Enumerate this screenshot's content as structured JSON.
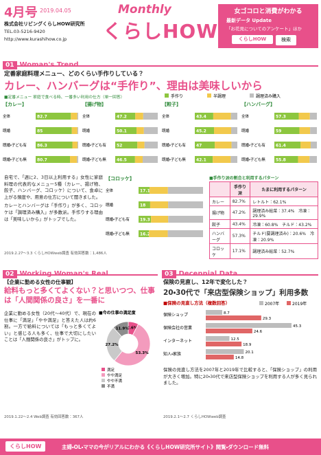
{
  "header": {
    "issue": "4月号",
    "date": "2019.04.05",
    "company": "株式会社リビングくらしHOW研究所",
    "tel": "TEL.03-5216-9420",
    "url": "http://www.kurashihow.co.jp",
    "logo_small": "Monthly",
    "logo": "くらしHOW",
    "tagline": "女ゴコロと消費がわかる",
    "update_label": "最新データ Update",
    "update_text": "「お花見についてのアンケート」ほか",
    "search_name": "くらしHOW",
    "search_button": "検索"
  },
  "section1": {
    "number": "01",
    "label": "Woman's Trend",
    "subtitle": "定番家庭料理メニュー、どのくらい手作りしている？",
    "headline": "カレー、ハンバーグは“手作り”、理由は美味しいから",
    "chart_note": "■定番メニュー 家庭で食べる時、一番多い利用の仕方（単一回答）",
    "legend": [
      {
        "name": "手作り",
        "color": "#8dc63f"
      },
      {
        "name": "半調理",
        "color": "#f2c94c"
      },
      {
        "name": "調理済み購入",
        "color": "#bfbfbf"
      }
    ],
    "xlim": [
      0,
      100
    ],
    "charts": [
      {
        "type": "bar",
        "title": "【カレー】",
        "categories": [
          "全体",
          "既婚",
          "既婚・子ども有",
          "既婚・子ども無"
        ],
        "series": [
          [
            82.7,
            85.0,
            86.3,
            80.7
          ],
          [
            15.2,
            13.1,
            12.0,
            16.5
          ],
          [
            2.1,
            1.9,
            1.7,
            2.8
          ]
        ]
      },
      {
        "type": "bar",
        "title": "【揚げ物】",
        "categories": [
          "全体",
          "既婚",
          "既婚・子ども有",
          "既婚・子ども無"
        ],
        "series": [
          [
            47.2,
            50.1,
            52.0,
            46.5
          ],
          [
            18.6,
            17.3,
            16.8,
            18.0
          ],
          [
            34.2,
            32.6,
            31.2,
            35.5
          ]
        ]
      },
      {
        "type": "bar",
        "title": "【餃子】",
        "categories": [
          "全体",
          "既婚",
          "既婚・子ども有",
          "既婚・子ども無"
        ],
        "series": [
          [
            43.4,
            45.2,
            47.0,
            42.1
          ],
          [
            41.6,
            40.3,
            39.5,
            42.4
          ],
          [
            15.0,
            14.5,
            13.5,
            15.5
          ]
        ]
      },
      {
        "type": "bar",
        "title": "【ハンバーグ】",
        "categories": [
          "全体",
          "既婚",
          "既婚・子ども有",
          "既婚・子ども無"
        ],
        "series": [
          [
            57.3,
            59.0,
            61.4,
            55.8
          ],
          [
            26.2,
            25.1,
            24.0,
            27.0
          ],
          [
            16.5,
            15.9,
            14.6,
            17.2
          ]
        ]
      },
      {
        "type": "bar",
        "title": "【コロッケ】",
        "categories": [
          "全体",
          "既婚",
          "既婚・子ども有",
          "既婚・子ども無"
        ],
        "series": [
          [
            17.1,
            18.0,
            19.3,
            16.2
          ],
          [
            28.4,
            27.9,
            26.7,
            29.1
          ],
          [
            54.5,
            54.1,
            54.0,
            54.7
          ]
        ]
      }
    ],
    "table": {
      "title": "■手作り派の割合と利用するパターン",
      "headers": [
        "",
        "手作り派",
        "たまに利用するパターン"
      ],
      "rows": [
        [
          "カレー",
          "82.7%",
          "レトルト：62.1%"
        ],
        [
          "揚げ物",
          "47.2%",
          "調理済み総菜：37.4%　冷凍：29.9%"
        ],
        [
          "餃子",
          "43.4%",
          "冷凍：60.8%　チルド：43.2%"
        ],
        [
          "ハンバーグ",
          "57.3%",
          "チルド(要調理済み)：20.6%　冷凍：20.9%"
        ],
        [
          "コロッケ",
          "17.1%",
          "調理済み総菜：52.7%"
        ]
      ]
    },
    "body": [
      "自宅で、「週に2、3日以上利用する」女性に家庭料理の代表的なメニュー5種（カレー、揚げ物、餃子、ハンバーグ、コロッケ）について、食卓に上がる頻度や、用意の仕方について聞きました。",
      "カレーとハンバーグは「手作り」が多く、コロッケは「調理済み購入」が多数派。手作りする理由は「美味しいから」がトップでした。"
    ],
    "footnote": "2019.2.27〜3.3 くらしHOWweb調査 有効回答数：1,486人"
  },
  "section2": {
    "number": "02",
    "label": "Working Woman's Real",
    "subtitle": "【企業に勤める女性の仕事観】",
    "headline": "給料もっと多くてよくない？と思いつつ、仕事は「人間関係の良さ」を一番に",
    "body": "企業に勤める女性（20代〜40代）で、現在の仕事に「満足」「やや満足」と答えた人は約6割。一方で給料については「もっと多くてよい」と感じる人も多く、仕事で大切にしたいことは「人間関係の良さ」がトップに。",
    "footnote": "2019.1.22〜2.4 Web調査 有効回答数：367人",
    "chart": {
      "type": "pie",
      "title": "■今の仕事の満足度",
      "categories": [
        "満足",
        "やや満足",
        "やや不満",
        "不満"
      ],
      "values": [
        7.6,
        53.3,
        27.2,
        11.9
      ],
      "value_labels": [
        "7.6%",
        "53.3%",
        "27.2%",
        "11.9%"
      ],
      "colors": [
        "#e8508a",
        "#f39bbd",
        "#c9c9c9",
        "#8c8c8c"
      ]
    }
  },
  "section3": {
    "number": "03",
    "label": "Decennial Data",
    "subtitle": "保険の見直し、12年で変化した？",
    "headline": "20・30代で「来店型保険ショップ」利用多数",
    "body": "保険の見直し方法を2007年と2019年で比較すると、「保険ショップ」の利用が大きく増加。特に20・30代で来店型保険ショップを利用する人が多く見られました。",
    "footnote": "2019.2.1〜2.7 くらしHOWweb調査",
    "chart": {
      "type": "bar",
      "title": "■保険の見直し方法（複数回答）",
      "categories": [
        "保険ショップ",
        "保険会社の営業",
        "インターネット",
        "知人・家族"
      ],
      "series": [
        {
          "name": "2007年",
          "color": "#bdbdbd",
          "values": [
            8.7,
            45.3,
            12.5,
            20.1
          ]
        },
        {
          "name": "2019年",
          "color": "#e06666",
          "values": [
            29.3,
            24.6,
            18.9,
            14.8
          ]
        }
      ],
      "xlim": [
        0,
        50
      ]
    }
  },
  "footer": {
    "logo": "くらしHOW",
    "text": "主婦・OL・ママの今がリアルにわかる《くらしHOW研究所サイト》閲覧・ダウンロード無料"
  }
}
